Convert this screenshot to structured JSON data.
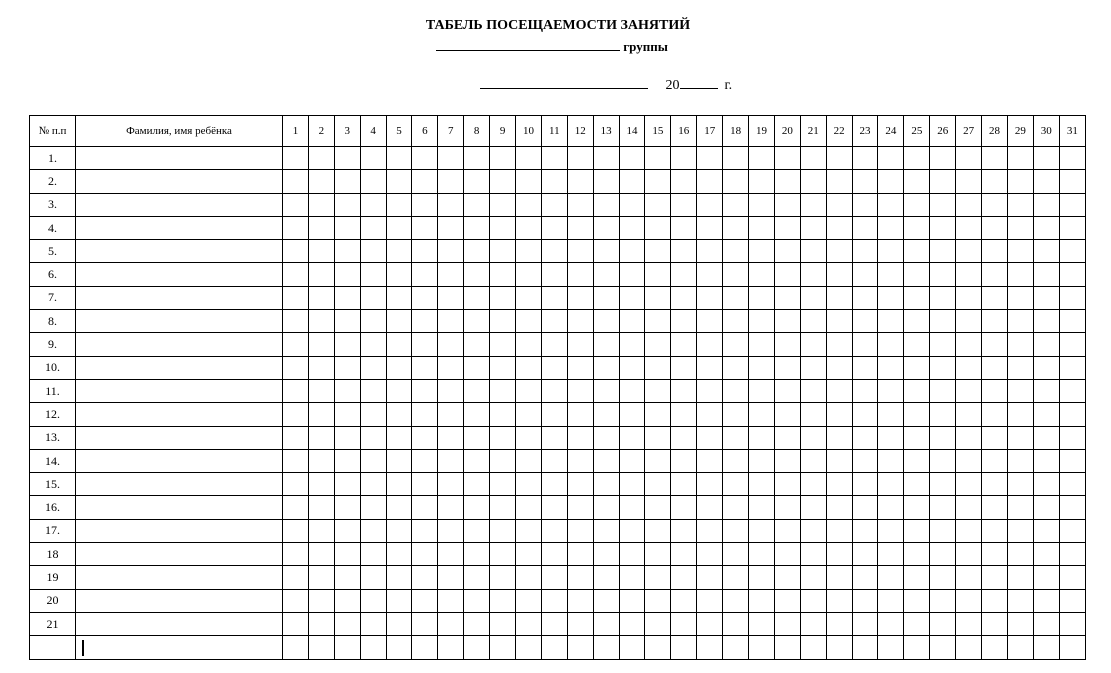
{
  "title": "ТАБЕЛЬ  ПОСЕЩАЕМОСТИ ЗАНЯТИЙ",
  "group_label": "группы",
  "year_prefix": "20",
  "year_suffix": "г.",
  "table": {
    "col_num": "№ п.п",
    "col_name": "Фамилия, имя ребёнка",
    "days": [
      "1",
      "2",
      "3",
      "4",
      "5",
      "6",
      "7",
      "8",
      "9",
      "10",
      "11",
      "12",
      "13",
      "14",
      "15",
      "16",
      "17",
      "18",
      "19",
      "20",
      "21",
      "22",
      "23",
      "24",
      "25",
      "26",
      "27",
      "28",
      "29",
      "30",
      "31"
    ],
    "rows": [
      "1.",
      "2.",
      "3.",
      "4.",
      "5.",
      "6.",
      "7.",
      "8.",
      "9.",
      "10.",
      "11.",
      "12.",
      "13.",
      "14.",
      "15.",
      "16.",
      "17.",
      "18",
      "19",
      "20",
      "21",
      ""
    ]
  }
}
